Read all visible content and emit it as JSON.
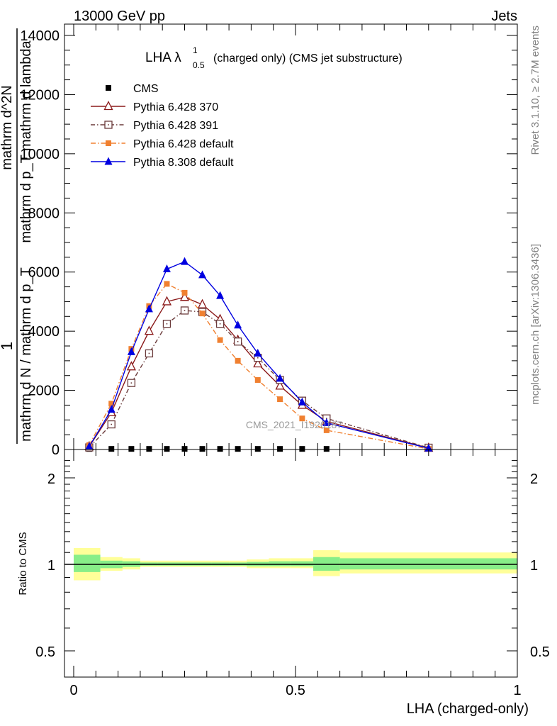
{
  "header": {
    "left": "13000 GeV pp",
    "right": "Jets"
  },
  "side_labels": {
    "rivet": "Rivet 3.1.10, ≥ 2.7M events",
    "mcplots": "mcplots.cern.ch [arXiv:1306.3436]"
  },
  "watermark": "CMS_2021_I1920187",
  "chart_data": {
    "type": "line",
    "title_main": "LHA λ",
    "title_sup": "1",
    "title_sub": "0.5",
    "title_rest": "(charged only) (CMS jet substructure)",
    "ylabel_num": "1",
    "ylabel_den": "mathrm d N / mathrm d p_T",
    "ylabel_frac_num": "mathrm d^2N",
    "ylabel_frac_den": "mathrm d p_T mathrm d lambda",
    "xlabel": "LHA (charged-only)",
    "ratio_ylabel": "Ratio to CMS",
    "xlim": [
      0,
      1
    ],
    "ylim": [
      0,
      14000
    ],
    "ratio_ylim": [
      0.4,
      2.4
    ],
    "main_yticks": [
      "0",
      "2000",
      "4000",
      "6000",
      "8000",
      "10000",
      "12000",
      "14000"
    ],
    "ratio_yticks": [
      "0.5",
      "1",
      "2"
    ],
    "xticks": [
      "0",
      "0.5",
      "1"
    ],
    "legend_position": "top-left",
    "series": [
      {
        "name": "CMS",
        "color": "#000000",
        "marker": "square-filled",
        "x": [
          0.035,
          0.085,
          0.13,
          0.17,
          0.21,
          0.25,
          0.29,
          0.33,
          0.37,
          0.415,
          0.465,
          0.515,
          0.57
        ],
        "values": [
          20,
          20,
          20,
          20,
          20,
          20,
          20,
          20,
          20,
          20,
          20,
          20,
          20
        ]
      },
      {
        "name": "Pythia 6.428 370",
        "color": "#8b1a1a",
        "marker": "triangle-open",
        "x": [
          0.035,
          0.085,
          0.13,
          0.17,
          0.21,
          0.25,
          0.29,
          0.33,
          0.37,
          0.415,
          0.465,
          0.515,
          0.57,
          0.8
        ],
        "values": [
          100,
          1250,
          2800,
          4000,
          5000,
          5150,
          4900,
          4400,
          3700,
          2900,
          2150,
          1500,
          950,
          50
        ]
      },
      {
        "name": "Pythia 6.428 391",
        "color": "#6b3b3b",
        "marker": "square-open",
        "x": [
          0.035,
          0.085,
          0.13,
          0.17,
          0.21,
          0.25,
          0.29,
          0.33,
          0.37,
          0.415,
          0.465,
          0.515,
          0.57,
          0.8
        ],
        "values": [
          70,
          850,
          2250,
          3250,
          4250,
          4700,
          4650,
          4250,
          3650,
          3100,
          2350,
          1650,
          1050,
          60
        ]
      },
      {
        "name": "Pythia 6.428 default",
        "color": "#f08030",
        "marker": "square-filled",
        "x": [
          0.035,
          0.085,
          0.13,
          0.17,
          0.21,
          0.25,
          0.29,
          0.33,
          0.37,
          0.415,
          0.465,
          0.515,
          0.57,
          0.8
        ],
        "values": [
          150,
          1550,
          3400,
          4850,
          5600,
          5300,
          4600,
          3700,
          3000,
          2350,
          1700,
          1050,
          650,
          20
        ]
      },
      {
        "name": "Pythia 8.308 default",
        "color": "#0000e0",
        "marker": "triangle-filled",
        "x": [
          0.035,
          0.085,
          0.13,
          0.17,
          0.21,
          0.25,
          0.29,
          0.33,
          0.37,
          0.415,
          0.465,
          0.515,
          0.57,
          0.8
        ],
        "values": [
          100,
          1350,
          3300,
          4750,
          6100,
          6350,
          5900,
          5200,
          4200,
          3250,
          2400,
          1600,
          900,
          40
        ]
      }
    ],
    "ratio_bands": {
      "edges": [
        0,
        0.06,
        0.11,
        0.15,
        0.19,
        0.23,
        0.27,
        0.31,
        0.35,
        0.39,
        0.44,
        0.49,
        0.54,
        0.6,
        1.0
      ],
      "yellow_lo": [
        0.88,
        0.95,
        0.96,
        0.98,
        0.98,
        0.98,
        0.98,
        0.98,
        0.98,
        0.97,
        0.97,
        0.97,
        0.91,
        0.93
      ],
      "yellow_hi": [
        1.14,
        1.06,
        1.05,
        1.03,
        1.03,
        1.03,
        1.03,
        1.03,
        1.03,
        1.04,
        1.05,
        1.05,
        1.12,
        1.1
      ],
      "green_lo": [
        0.94,
        0.97,
        0.98,
        0.99,
        0.99,
        0.99,
        0.99,
        0.99,
        0.99,
        0.985,
        0.985,
        0.985,
        0.95,
        0.96
      ],
      "green_hi": [
        1.08,
        1.03,
        1.025,
        1.015,
        1.015,
        1.015,
        1.015,
        1.015,
        1.015,
        1.02,
        1.025,
        1.025,
        1.06,
        1.05
      ]
    }
  }
}
